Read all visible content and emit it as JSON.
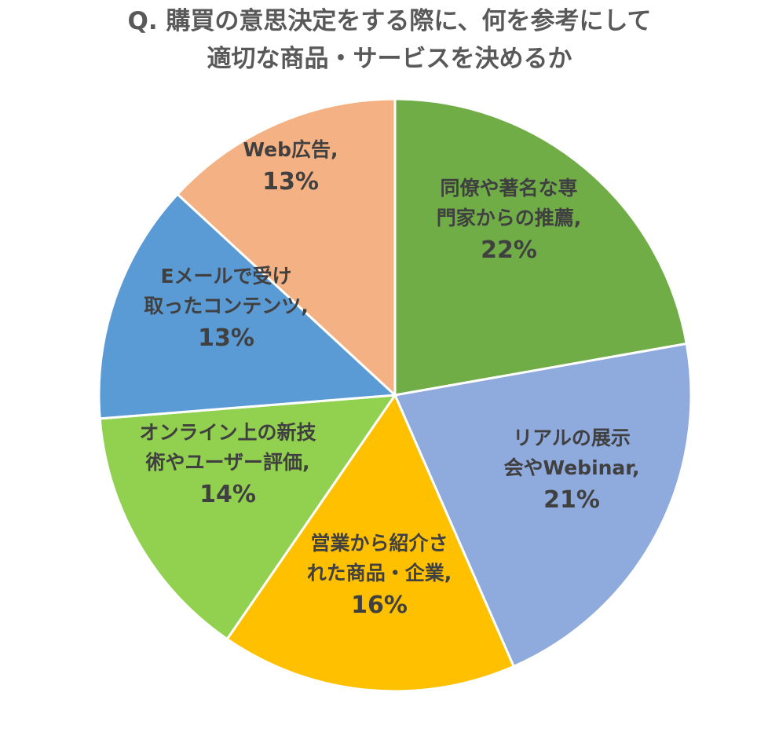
{
  "title_line1": "Q. 購買の意思決定をする際に、何を参考にして",
  "title_line2": "適切な商品・サービスを決めるか",
  "chart_data": {
    "type": "pie",
    "title": "Q. 購買の意思決定をする際に、何を参考にして適切な商品・サービスを決めるか",
    "slices": [
      {
        "name": "同僚や著名な専門家からの推薦",
        "label_lines": [
          "同僚や著名な専",
          "門家からの推薦,"
        ],
        "value": 22,
        "value_label": "22%",
        "color": "#70AD47"
      },
      {
        "name": "リアルの展示会やWebinar",
        "label_lines": [
          "リアルの展示",
          "会やWebinar,"
        ],
        "value": 21,
        "value_label": "21%",
        "color": "#8FAADC"
      },
      {
        "name": "営業から紹介された商品・企業",
        "label_lines": [
          "営業から紹介さ",
          "れた商品・企業,"
        ],
        "value": 16,
        "value_label": "16%",
        "color": "#FFC000"
      },
      {
        "name": "オンライン上の新技術やユーザー評価",
        "label_lines": [
          "オンライン上の新技",
          "術やユーザー評価,"
        ],
        "value": 14,
        "value_label": "14%",
        "color": "#92D050"
      },
      {
        "name": "Eメールで受け取ったコンテンツ",
        "label_lines": [
          "Eメールで受け",
          "取ったコンテンツ,"
        ],
        "value": 13,
        "value_label": "13%",
        "color": "#5B9BD5"
      },
      {
        "name": "Web広告",
        "label_lines": [
          "Web広告,"
        ],
        "value": 13,
        "value_label": "13%",
        "color": "#F4B183"
      }
    ]
  }
}
